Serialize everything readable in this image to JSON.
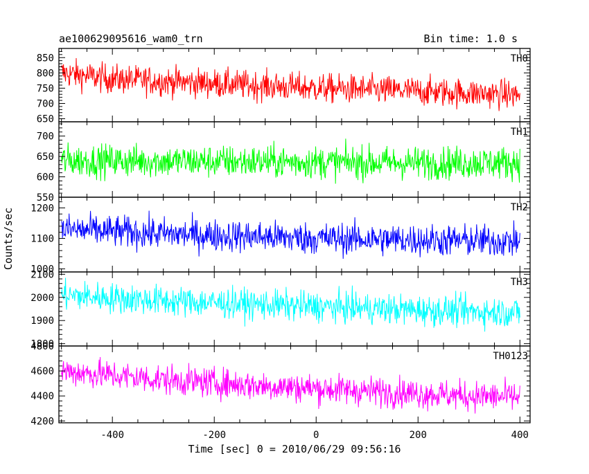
{
  "chart_data": {
    "type": "line",
    "title_left": "ae100629095616_wam0_trn",
    "title_right": "Bin time: 1.0 s",
    "xlabel": "Time [sec] 0 = 2010/06/29 09:56:16",
    "ylabel": "Counts/sec",
    "xlim": [
      -505,
      420
    ],
    "x_ticks": [
      "-400",
      "-200",
      "0",
      "200",
      "400"
    ],
    "x_range": [
      -500,
      400
    ],
    "bin_time_s": 1.0,
    "panels": [
      {
        "name": "TH0",
        "color": "#ff0000",
        "ylim": [
          640,
          880
        ],
        "y_ticks": [
          "650",
          "700",
          "750",
          "800",
          "850"
        ],
        "trend": [
          [
            -500,
            800
          ],
          [
            -400,
            780
          ],
          [
            -200,
            765
          ],
          [
            0,
            750
          ],
          [
            200,
            740
          ],
          [
            400,
            728
          ]
        ],
        "noise_amplitude": 38
      },
      {
        "name": "TH1",
        "color": "#00ff00",
        "ylim": [
          550,
          735
        ],
        "y_ticks": [
          "550",
          "600",
          "650",
          "700"
        ],
        "trend": [
          [
            -500,
            640
          ],
          [
            -250,
            638
          ],
          [
            0,
            636
          ],
          [
            200,
            634
          ],
          [
            400,
            635
          ]
        ],
        "noise_amplitude": 32
      },
      {
        "name": "TH2",
        "color": "#0000ff",
        "ylim": [
          990,
          1235
        ],
        "y_ticks": [
          "1000",
          "1100",
          "1200"
        ],
        "trend": [
          [
            -500,
            1130
          ],
          [
            -300,
            1115
          ],
          [
            0,
            1100
          ],
          [
            200,
            1095
          ],
          [
            400,
            1090
          ]
        ],
        "noise_amplitude": 42
      },
      {
        "name": "TH3",
        "color": "#00ffff",
        "ylim": [
          1790,
          2110
        ],
        "y_ticks": [
          "1800",
          "1900",
          "2000",
          "2100"
        ],
        "trend": [
          [
            -500,
            2010
          ],
          [
            -300,
            1985
          ],
          [
            0,
            1960
          ],
          [
            200,
            1945
          ],
          [
            400,
            1935
          ]
        ],
        "noise_amplitude": 52
      },
      {
        "name": "TH0123",
        "color": "#ff00ff",
        "ylim": [
          4185,
          4800
        ],
        "y_ticks": [
          "4200",
          "4400",
          "4600",
          "4800"
        ],
        "trend": [
          [
            -500,
            4600
          ],
          [
            -300,
            4530
          ],
          [
            -100,
            4480
          ],
          [
            100,
            4440
          ],
          [
            300,
            4400
          ],
          [
            400,
            4390
          ]
        ],
        "noise_amplitude": 95
      }
    ]
  }
}
